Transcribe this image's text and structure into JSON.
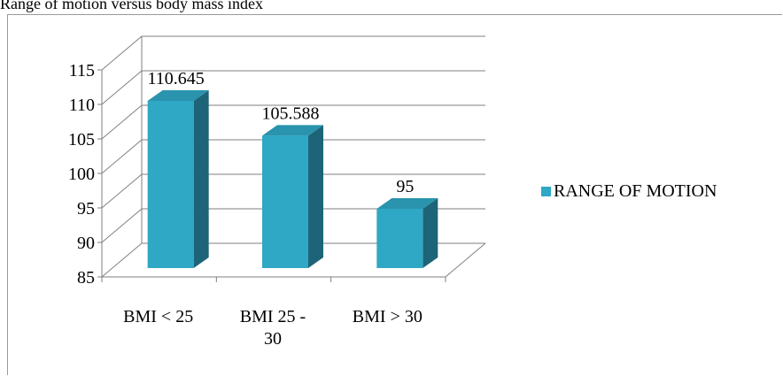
{
  "caption": "Range of motion versus body mass index",
  "chart_data": {
    "type": "bar",
    "title": "",
    "xlabel": "",
    "ylabel": "",
    "categories": [
      "BMI < 25",
      "BMI 25 - 30",
      "BMI > 30"
    ],
    "category_lines": [
      [
        "BMI < 25"
      ],
      [
        "BMI 25 -",
        "30"
      ],
      [
        "BMI > 30"
      ]
    ],
    "series": [
      {
        "name": "RANGE OF MOTION",
        "values": [
          110.645,
          105.588,
          95
        ],
        "labels": [
          "110.645",
          "105.588",
          "95"
        ]
      }
    ],
    "ylim": [
      85,
      115
    ],
    "yticks": [
      85,
      90,
      95,
      100,
      105,
      110,
      115
    ],
    "grid": true,
    "three_d": true,
    "legend_position": "right",
    "colors": {
      "front": "#2ea8c4",
      "side": "#1d6478",
      "top": "#2a93ad",
      "grid": "#7f7f7f",
      "frame": "#9a9a9a"
    }
  }
}
